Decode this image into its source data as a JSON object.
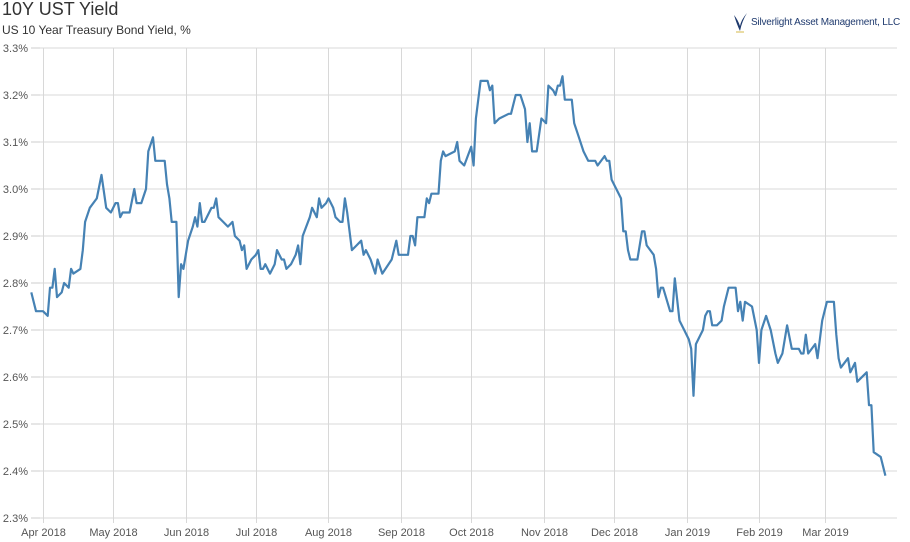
{
  "chart_data": {
    "type": "line",
    "title": "10Y UST Yield",
    "subtitle": "US 10 Year Treasury Bond Yield, %",
    "logo_text": "Silverlight Asset Management, LLC",
    "xlabel": "",
    "ylabel": "",
    "ylim": [
      2.3,
      3.3
    ],
    "y_ticks": [
      "2.3%",
      "2.4%",
      "2.5%",
      "2.6%",
      "2.7%",
      "2.8%",
      "2.9%",
      "3.0%",
      "3.1%",
      "3.2%",
      "3.3%"
    ],
    "y_tick_values": [
      2.3,
      2.4,
      2.5,
      2.6,
      2.7,
      2.8,
      2.9,
      3.0,
      3.1,
      3.2,
      3.3
    ],
    "x_ticks": [
      "Apr 2018",
      "May 2018",
      "Jun 2018",
      "Jul 2018",
      "Aug 2018",
      "Sep 2018",
      "Oct 2018",
      "Nov 2018",
      "Dec 2018",
      "Jan 2019",
      "Feb 2019",
      "Mar 2019"
    ],
    "x_tick_dates": [
      "2018-04-01",
      "2018-05-01",
      "2018-06-01",
      "2018-07-01",
      "2018-08-01",
      "2018-09-01",
      "2018-10-01",
      "2018-11-01",
      "2018-12-01",
      "2019-01-01",
      "2019-02-01",
      "2019-03-01"
    ],
    "grid": true,
    "line_color": "#4682b4",
    "series": [
      {
        "points": [
          [
            "2018-03-27",
            2.78
          ],
          [
            "2018-03-29",
            2.74
          ],
          [
            "2018-04-01",
            2.74
          ],
          [
            "2018-04-03",
            2.73
          ],
          [
            "2018-04-04",
            2.79
          ],
          [
            "2018-04-05",
            2.79
          ],
          [
            "2018-04-06",
            2.83
          ],
          [
            "2018-04-07",
            2.77
          ],
          [
            "2018-04-09",
            2.78
          ],
          [
            "2018-04-10",
            2.8
          ],
          [
            "2018-04-12",
            2.79
          ],
          [
            "2018-04-13",
            2.83
          ],
          [
            "2018-04-14",
            2.82
          ],
          [
            "2018-04-17",
            2.83
          ],
          [
            "2018-04-18",
            2.87
          ],
          [
            "2018-04-19",
            2.93
          ],
          [
            "2018-04-21",
            2.96
          ],
          [
            "2018-04-24",
            2.98
          ],
          [
            "2018-04-26",
            3.03
          ],
          [
            "2018-04-28",
            2.96
          ],
          [
            "2018-04-30",
            2.95
          ],
          [
            "2018-05-02",
            2.97
          ],
          [
            "2018-05-03",
            2.97
          ],
          [
            "2018-05-04",
            2.94
          ],
          [
            "2018-05-05",
            2.95
          ],
          [
            "2018-05-08",
            2.95
          ],
          [
            "2018-05-10",
            3.0
          ],
          [
            "2018-05-11",
            2.97
          ],
          [
            "2018-05-13",
            2.97
          ],
          [
            "2018-05-15",
            3.0
          ],
          [
            "2018-05-16",
            3.08
          ],
          [
            "2018-05-18",
            3.11
          ],
          [
            "2018-05-19",
            3.06
          ],
          [
            "2018-05-23",
            3.06
          ],
          [
            "2018-05-24",
            3.01
          ],
          [
            "2018-05-25",
            2.98
          ],
          [
            "2018-05-26",
            2.93
          ],
          [
            "2018-05-28",
            2.93
          ],
          [
            "2018-05-29",
            2.77
          ],
          [
            "2018-05-30",
            2.84
          ],
          [
            "2018-05-31",
            2.83
          ],
          [
            "2018-06-02",
            2.89
          ],
          [
            "2018-06-04",
            2.92
          ],
          [
            "2018-06-05",
            2.94
          ],
          [
            "2018-06-06",
            2.92
          ],
          [
            "2018-06-07",
            2.97
          ],
          [
            "2018-06-08",
            2.93
          ],
          [
            "2018-06-09",
            2.93
          ],
          [
            "2018-06-12",
            2.96
          ],
          [
            "2018-06-13",
            2.96
          ],
          [
            "2018-06-14",
            2.98
          ],
          [
            "2018-06-15",
            2.94
          ],
          [
            "2018-06-17",
            2.93
          ],
          [
            "2018-06-19",
            2.92
          ],
          [
            "2018-06-21",
            2.93
          ],
          [
            "2018-06-22",
            2.9
          ],
          [
            "2018-06-24",
            2.89
          ],
          [
            "2018-06-25",
            2.87
          ],
          [
            "2018-06-26",
            2.88
          ],
          [
            "2018-06-27",
            2.83
          ],
          [
            "2018-06-29",
            2.85
          ],
          [
            "2018-07-01",
            2.86
          ],
          [
            "2018-07-02",
            2.87
          ],
          [
            "2018-07-03",
            2.83
          ],
          [
            "2018-07-04",
            2.83
          ],
          [
            "2018-07-05",
            2.84
          ],
          [
            "2018-07-07",
            2.82
          ],
          [
            "2018-07-09",
            2.84
          ],
          [
            "2018-07-10",
            2.87
          ],
          [
            "2018-07-12",
            2.85
          ],
          [
            "2018-07-13",
            2.85
          ],
          [
            "2018-07-14",
            2.83
          ],
          [
            "2018-07-16",
            2.84
          ],
          [
            "2018-07-18",
            2.86
          ],
          [
            "2018-07-19",
            2.88
          ],
          [
            "2018-07-20",
            2.84
          ],
          [
            "2018-07-21",
            2.9
          ],
          [
            "2018-07-24",
            2.94
          ],
          [
            "2018-07-25",
            2.96
          ],
          [
            "2018-07-27",
            2.94
          ],
          [
            "2018-07-28",
            2.98
          ],
          [
            "2018-07-29",
            2.96
          ],
          [
            "2018-07-31",
            2.97
          ],
          [
            "2018-08-01",
            2.98
          ],
          [
            "2018-08-03",
            2.96
          ],
          [
            "2018-08-04",
            2.94
          ],
          [
            "2018-08-06",
            2.93
          ],
          [
            "2018-08-07",
            2.93
          ],
          [
            "2018-08-08",
            2.98
          ],
          [
            "2018-08-09",
            2.95
          ],
          [
            "2018-08-11",
            2.87
          ],
          [
            "2018-08-13",
            2.88
          ],
          [
            "2018-08-15",
            2.89
          ],
          [
            "2018-08-16",
            2.86
          ],
          [
            "2018-08-17",
            2.87
          ],
          [
            "2018-08-19",
            2.85
          ],
          [
            "2018-08-21",
            2.82
          ],
          [
            "2018-08-22",
            2.85
          ],
          [
            "2018-08-24",
            2.82
          ],
          [
            "2018-08-28",
            2.85
          ],
          [
            "2018-08-30",
            2.89
          ],
          [
            "2018-08-31",
            2.86
          ],
          [
            "2018-09-04",
            2.86
          ],
          [
            "2018-09-05",
            2.9
          ],
          [
            "2018-09-06",
            2.9
          ],
          [
            "2018-09-07",
            2.88
          ],
          [
            "2018-09-08",
            2.94
          ],
          [
            "2018-09-11",
            2.94
          ],
          [
            "2018-09-12",
            2.98
          ],
          [
            "2018-09-13",
            2.97
          ],
          [
            "2018-09-14",
            2.99
          ],
          [
            "2018-09-17",
            2.99
          ],
          [
            "2018-09-18",
            3.06
          ],
          [
            "2018-09-19",
            3.08
          ],
          [
            "2018-09-20",
            3.07
          ],
          [
            "2018-09-24",
            3.08
          ],
          [
            "2018-09-25",
            3.1
          ],
          [
            "2018-09-26",
            3.06
          ],
          [
            "2018-09-28",
            3.05
          ],
          [
            "2018-10-01",
            3.09
          ],
          [
            "2018-10-02",
            3.05
          ],
          [
            "2018-10-03",
            3.15
          ],
          [
            "2018-10-05",
            3.23
          ],
          [
            "2018-10-08",
            3.23
          ],
          [
            "2018-10-09",
            3.21
          ],
          [
            "2018-10-10",
            3.22
          ],
          [
            "2018-10-11",
            3.14
          ],
          [
            "2018-10-13",
            3.15
          ],
          [
            "2018-10-17",
            3.16
          ],
          [
            "2018-10-18",
            3.16
          ],
          [
            "2018-10-20",
            3.2
          ],
          [
            "2018-10-22",
            3.2
          ],
          [
            "2018-10-24",
            3.17
          ],
          [
            "2018-10-25",
            3.1
          ],
          [
            "2018-10-26",
            3.14
          ],
          [
            "2018-10-27",
            3.08
          ],
          [
            "2018-10-29",
            3.08
          ],
          [
            "2018-10-31",
            3.15
          ],
          [
            "2018-11-02",
            3.14
          ],
          [
            "2018-11-03",
            3.22
          ],
          [
            "2018-11-05",
            3.21
          ],
          [
            "2018-11-06",
            3.2
          ],
          [
            "2018-11-07",
            3.22
          ],
          [
            "2018-11-08",
            3.22
          ],
          [
            "2018-11-09",
            3.24
          ],
          [
            "2018-11-10",
            3.19
          ],
          [
            "2018-11-13",
            3.19
          ],
          [
            "2018-11-14",
            3.14
          ],
          [
            "2018-11-16",
            3.11
          ],
          [
            "2018-11-18",
            3.08
          ],
          [
            "2018-11-20",
            3.06
          ],
          [
            "2018-11-23",
            3.06
          ],
          [
            "2018-11-24",
            3.05
          ],
          [
            "2018-11-27",
            3.07
          ],
          [
            "2018-11-28",
            3.06
          ],
          [
            "2018-11-29",
            3.06
          ],
          [
            "2018-11-30",
            3.02
          ],
          [
            "2018-12-02",
            3.0
          ],
          [
            "2018-12-04",
            2.98
          ],
          [
            "2018-12-05",
            2.91
          ],
          [
            "2018-12-06",
            2.91
          ],
          [
            "2018-12-07",
            2.87
          ],
          [
            "2018-12-08",
            2.85
          ],
          [
            "2018-12-11",
            2.85
          ],
          [
            "2018-12-13",
            2.91
          ],
          [
            "2018-12-14",
            2.91
          ],
          [
            "2018-12-15",
            2.88
          ],
          [
            "2018-12-18",
            2.86
          ],
          [
            "2018-12-19",
            2.83
          ],
          [
            "2018-12-20",
            2.77
          ],
          [
            "2018-12-21",
            2.79
          ],
          [
            "2018-12-22",
            2.79
          ],
          [
            "2018-12-25",
            2.74
          ],
          [
            "2018-12-26",
            2.74
          ],
          [
            "2018-12-27",
            2.81
          ],
          [
            "2018-12-29",
            2.72
          ],
          [
            "2018-12-31",
            2.7
          ],
          [
            "2019-01-02",
            2.68
          ],
          [
            "2019-01-03",
            2.66
          ],
          [
            "2019-01-04",
            2.56
          ],
          [
            "2019-01-05",
            2.67
          ],
          [
            "2019-01-08",
            2.7
          ],
          [
            "2019-01-09",
            2.73
          ],
          [
            "2019-01-10",
            2.74
          ],
          [
            "2019-01-11",
            2.74
          ],
          [
            "2019-01-12",
            2.71
          ],
          [
            "2019-01-14",
            2.71
          ],
          [
            "2019-01-16",
            2.72
          ],
          [
            "2019-01-17",
            2.75
          ],
          [
            "2019-01-19",
            2.79
          ],
          [
            "2019-01-22",
            2.79
          ],
          [
            "2019-01-23",
            2.74
          ],
          [
            "2019-01-24",
            2.76
          ],
          [
            "2019-01-25",
            2.72
          ],
          [
            "2019-01-26",
            2.76
          ],
          [
            "2019-01-29",
            2.75
          ],
          [
            "2019-01-31",
            2.7
          ],
          [
            "2019-02-01",
            2.63
          ],
          [
            "2019-02-02",
            2.7
          ],
          [
            "2019-02-04",
            2.73
          ],
          [
            "2019-02-06",
            2.7
          ],
          [
            "2019-02-08",
            2.65
          ],
          [
            "2019-02-09",
            2.63
          ],
          [
            "2019-02-11",
            2.65
          ],
          [
            "2019-02-13",
            2.71
          ],
          [
            "2019-02-15",
            2.66
          ],
          [
            "2019-02-18",
            2.66
          ],
          [
            "2019-02-19",
            2.65
          ],
          [
            "2019-02-20",
            2.65
          ],
          [
            "2019-02-21",
            2.69
          ],
          [
            "2019-02-22",
            2.65
          ],
          [
            "2019-02-25",
            2.67
          ],
          [
            "2019-02-26",
            2.64
          ],
          [
            "2019-02-28",
            2.72
          ],
          [
            "2019-03-02",
            2.76
          ],
          [
            "2019-03-05",
            2.76
          ],
          [
            "2019-03-06",
            2.69
          ],
          [
            "2019-03-07",
            2.64
          ],
          [
            "2019-03-08",
            2.62
          ],
          [
            "2019-03-11",
            2.64
          ],
          [
            "2019-03-12",
            2.61
          ],
          [
            "2019-03-14",
            2.63
          ],
          [
            "2019-03-15",
            2.59
          ],
          [
            "2019-03-19",
            2.61
          ],
          [
            "2019-03-20",
            2.54
          ],
          [
            "2019-03-21",
            2.54
          ],
          [
            "2019-03-22",
            2.44
          ],
          [
            "2019-03-25",
            2.43
          ],
          [
            "2019-03-27",
            2.39
          ]
        ]
      }
    ]
  }
}
